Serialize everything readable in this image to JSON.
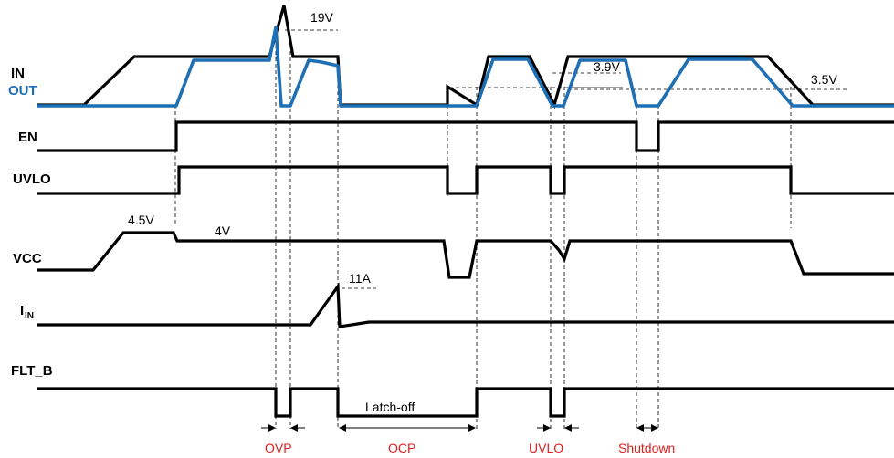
{
  "signals": {
    "in": "IN",
    "out": "OUT",
    "en": "EN",
    "uvlo": "UVLO",
    "vcc": "VCC",
    "iin_main": "I",
    "iin_sub": "IN",
    "flt_b": "FLT_B"
  },
  "annotations": {
    "v19": "19V",
    "v39": "3.9V",
    "v35": "3.5V",
    "v45": "4.5V",
    "v4": "4V",
    "a11": "11A",
    "latch_off": "Latch-off"
  },
  "events": {
    "ovp": "OVP",
    "ocp": "OCP",
    "uvlo": "UVLO",
    "shutdown": "Shutdown"
  },
  "colors": {
    "out_trace": "#1f6fb5",
    "event_text": "#e02020",
    "label_blue": "#1f6fb5"
  }
}
